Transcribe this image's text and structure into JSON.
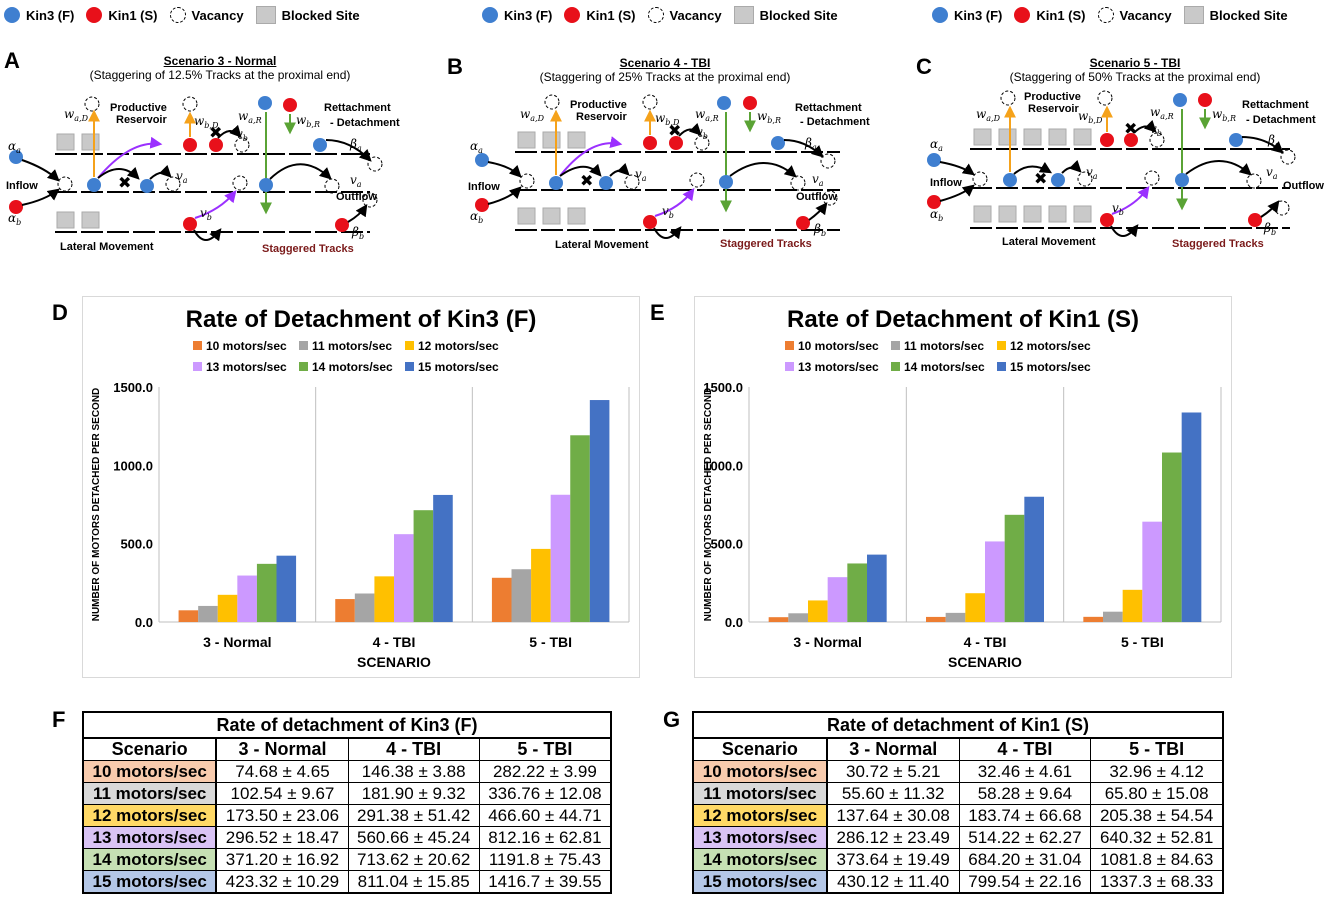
{
  "legend": {
    "kin3": "Kin3 (F)",
    "kin1": "Kin1 (S)",
    "vacancy": "Vacancy",
    "blocked": "Blocked Site"
  },
  "colors": {
    "kin3": "#3f7fd0",
    "kin1": "#e8101a",
    "blocked": "#c9c9c9",
    "orange_arrow": "#f5a21b",
    "green_arrow": "#5aa335",
    "purple_arrow": "#9b30ff",
    "staggered": "#7b1a1a"
  },
  "panel_labels": [
    "A",
    "B",
    "C",
    "D",
    "E",
    "F",
    "G"
  ],
  "diagrams": [
    {
      "title": "Scenario 3 - Normal",
      "subtitle": "(Staggering of 12.5% Tracks at the proximal end)"
    },
    {
      "title": "Scenario 4 - TBI",
      "subtitle": "(Staggering of 25% Tracks at the proximal end)"
    },
    {
      "title": "Scenario 5 - TBI",
      "subtitle": "(Staggering of 50% Tracks at the proximal end)"
    }
  ],
  "diagram_text": {
    "productive": "Productive",
    "reservoir": "Reservoir",
    "rett": "Rettachment",
    "det": "- Detachment",
    "inflow": "Inflow",
    "outflow": "Outflow",
    "lateral": "Lateral Movement",
    "staggered": "Staggered Tracks",
    "alpha_a": "α",
    "alpha_b": "α",
    "beta_a": "β",
    "beta_b": "β",
    "nu_a": "v",
    "nu_b": "v",
    "w_aD": "w",
    "w_bD": "w",
    "w_aR": "w",
    "w_bR": "w",
    "sub_a": "a",
    "sub_b": "b",
    "sub_aD": "a,D",
    "sub_bD": "b,D",
    "sub_aR": "a,R",
    "sub_bR": "b,R"
  },
  "chart_data": [
    {
      "type": "bar",
      "title": "Rate of Detachment of Kin3 (F)",
      "xlabel": "SCENARIO",
      "ylabel": "NUMBER OF MOTORS DETACHED PER SECOND",
      "ylim": [
        0,
        1500
      ],
      "yticks": [
        "0.0",
        "500.0",
        "1000.0",
        "1500.0"
      ],
      "categories": [
        "3 - Normal",
        "4 - TBI",
        "5 - TBI"
      ],
      "series": [
        {
          "name": "10 motors/sec",
          "color": "#ed7d31",
          "values": [
            74.68,
            146.38,
            282.22
          ]
        },
        {
          "name": "11 motors/sec",
          "color": "#a5a5a5",
          "values": [
            102.54,
            181.9,
            336.76
          ]
        },
        {
          "name": "12 motors/sec",
          "color": "#ffc000",
          "values": [
            173.5,
            291.38,
            466.6
          ]
        },
        {
          "name": "13 motors/sec",
          "color": "#cc99ff",
          "values": [
            296.52,
            560.66,
            812.16
          ]
        },
        {
          "name": "14 motors/sec",
          "color": "#70ad47",
          "values": [
            371.2,
            713.62,
            1191.8
          ]
        },
        {
          "name": "15 motors/sec",
          "color": "#4472c4",
          "values": [
            423.32,
            811.04,
            1416.7
          ]
        }
      ]
    },
    {
      "type": "bar",
      "title": "Rate of Detachment of Kin1 (S)",
      "xlabel": "SCENARIO",
      "ylabel": "NUMBER OF MOTORS DETACHED PER SECOND",
      "ylim": [
        0,
        1500
      ],
      "yticks": [
        "0.0",
        "500.0",
        "1000.0",
        "1500.0"
      ],
      "categories": [
        "3 - Normal",
        "4 - TBI",
        "5 - TBI"
      ],
      "series": [
        {
          "name": "10 motors/sec",
          "color": "#ed7d31",
          "values": [
            30.72,
            32.46,
            32.96
          ]
        },
        {
          "name": "11 motors/sec",
          "color": "#a5a5a5",
          "values": [
            55.6,
            58.28,
            65.8
          ]
        },
        {
          "name": "12 motors/sec",
          "color": "#ffc000",
          "values": [
            137.64,
            183.74,
            205.38
          ]
        },
        {
          "name": "13 motors/sec",
          "color": "#cc99ff",
          "values": [
            286.12,
            514.22,
            640.32
          ]
        },
        {
          "name": "14 motors/sec",
          "color": "#70ad47",
          "values": [
            373.64,
            684.2,
            1081.8
          ]
        },
        {
          "name": "15 motors/sec",
          "color": "#4472c4",
          "values": [
            430.12,
            799.54,
            1337.3
          ]
        }
      ]
    }
  ],
  "tables": [
    {
      "caption": "Rate of detachment of Kin3 (F)",
      "headers": [
        "Scenario",
        "3 - Normal",
        "4 - TBI",
        "5 - TBI"
      ],
      "rows": [
        {
          "label": "10 motors/sec",
          "bg": "#f8cbad",
          "cells": [
            "74.68 ± 4.65",
            "146.38 ± 3.88",
            "282.22 ± 3.99"
          ]
        },
        {
          "label": "11 motors/sec",
          "bg": "#d9d9d9",
          "cells": [
            "102.54 ± 9.67",
            "181.90 ± 9.32",
            "336.76 ± 12.08"
          ]
        },
        {
          "label": "12 motors/sec",
          "bg": "#ffd966",
          "cells": [
            "173.50 ± 23.06",
            "291.38 ± 51.42",
            "466.60 ± 44.71"
          ]
        },
        {
          "label": "13 motors/sec",
          "bg": "#d9c3f5",
          "cells": [
            "296.52 ± 18.47",
            "560.66 ± 45.24",
            "812.16 ± 62.81"
          ]
        },
        {
          "label": "14 motors/sec",
          "bg": "#c6e0b4",
          "cells": [
            "371.20 ± 16.92",
            "713.62 ± 20.62",
            "1191.8 ± 75.43"
          ]
        },
        {
          "label": "15 motors/sec",
          "bg": "#b4c7e7",
          "cells": [
            "423.32 ± 10.29",
            "811.04 ± 15.85",
            "1416.7 ± 39.55"
          ]
        }
      ]
    },
    {
      "caption": "Rate of detachment of Kin1 (S)",
      "headers": [
        "Scenario",
        "3 - Normal",
        "4 - TBI",
        "5 - TBI"
      ],
      "rows": [
        {
          "label": "10 motors/sec",
          "bg": "#f8cbad",
          "cells": [
            "30.72 ± 5.21",
            "32.46 ± 4.61",
            "32.96 ± 4.12"
          ]
        },
        {
          "label": "11 motors/sec",
          "bg": "#d9d9d9",
          "cells": [
            "55.60 ± 11.32",
            "58.28 ± 9.64",
            "65.80 ± 15.08"
          ]
        },
        {
          "label": "12 motors/sec",
          "bg": "#ffd966",
          "cells": [
            "137.64 ± 30.08",
            "183.74 ± 66.68",
            "205.38 ± 54.54"
          ]
        },
        {
          "label": "13 motors/sec",
          "bg": "#d9c3f5",
          "cells": [
            "286.12 ± 23.49",
            "514.22 ± 62.27",
            "640.32 ± 52.81"
          ]
        },
        {
          "label": "14 motors/sec",
          "bg": "#c6e0b4",
          "cells": [
            "373.64 ± 19.49",
            "684.20 ± 31.04",
            "1081.8 ± 84.63"
          ]
        },
        {
          "label": "15 motors/sec",
          "bg": "#b4c7e7",
          "cells": [
            "430.12 ± 11.40",
            "799.54 ± 22.16",
            "1337.3 ± 68.33"
          ]
        }
      ]
    }
  ]
}
